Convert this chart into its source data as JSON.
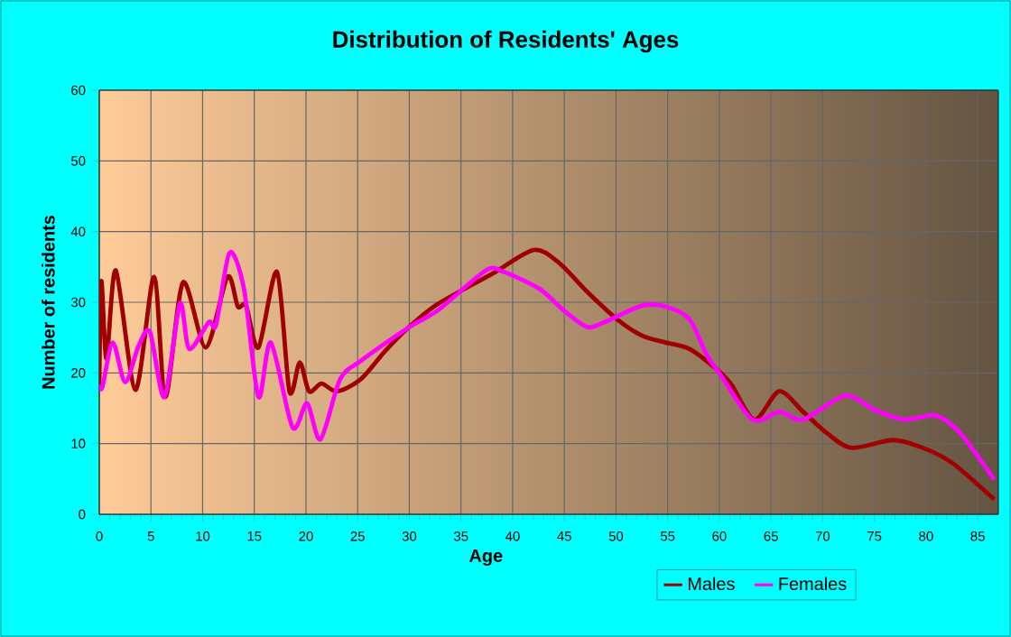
{
  "chart_data": {
    "type": "line",
    "title": "Distribution of Residents' Ages",
    "xlabel": "Age",
    "ylabel": "Number of residents",
    "xlim": [
      0,
      87
    ],
    "ylim": [
      0,
      60
    ],
    "xticks": [
      0,
      5,
      10,
      15,
      20,
      25,
      30,
      35,
      40,
      45,
      50,
      55,
      60,
      65,
      70,
      75,
      80,
      85
    ],
    "yticks": [
      0,
      10,
      20,
      30,
      40,
      50,
      60
    ],
    "grid": true,
    "legend": "bottom",
    "marker": "none",
    "line_style": "solid",
    "series": [
      {
        "name": "Males",
        "color": "#a00000",
        "x": [
          0,
          0.2,
          0.7,
          1.6,
          3.5,
          5.3,
          6.4,
          8.1,
          10.3,
          12.4,
          13.4,
          14.2,
          15.4,
          17.2,
          18.4,
          19.4,
          20.3,
          21.5,
          23,
          25.3,
          27.6,
          29.9,
          32.8,
          38,
          42,
          44.4,
          47.2,
          50.1,
          52.5,
          54.8,
          57.1,
          60,
          61.2,
          63.4,
          65.8,
          68.1,
          70.4,
          72.8,
          76.8,
          79.7,
          82.6,
          86.6
        ],
        "values": [
          18.3,
          33,
          22,
          34.5,
          17.6,
          33.6,
          16.6,
          32.8,
          23.6,
          33.6,
          29.4,
          29.5,
          23.6,
          34.3,
          17.4,
          21.5,
          17.4,
          18.5,
          17.4,
          19.1,
          23,
          26.4,
          29.8,
          34,
          37.4,
          35.7,
          31.5,
          27.6,
          25.3,
          24.3,
          23.4,
          20.2,
          18.3,
          13.4,
          17.4,
          14.5,
          11.5,
          9.4,
          10.5,
          9.4,
          7.2,
          2.1
        ]
      },
      {
        "name": "Females",
        "color": "#ff00ff",
        "x": [
          0,
          0.3,
          1.3,
          2.5,
          3.8,
          4.9,
          6.3,
          7.8,
          8.7,
          10.6,
          11.3,
          12.6,
          14,
          15.4,
          16.6,
          18.7,
          20.1,
          21.4,
          23.3,
          25.3,
          29.9,
          32.8,
          37.4,
          39.1,
          42.6,
          44.9,
          47.2,
          48.9,
          52.5,
          54.8,
          57.1,
          58.8,
          60,
          63.2,
          65.8,
          68.1,
          72.2,
          75.1,
          78,
          80.9,
          83.3,
          86.6
        ],
        "values": [
          18.3,
          18,
          24.3,
          18.7,
          23.8,
          25.8,
          16.6,
          29.8,
          23.4,
          27.2,
          26.8,
          37,
          31.9,
          16.6,
          24.3,
          12.3,
          15.7,
          10.6,
          19.1,
          21.7,
          26.4,
          28.9,
          34.5,
          34.3,
          31.9,
          28.9,
          26.5,
          27.2,
          29.5,
          29.4,
          27.6,
          22.5,
          20,
          13.4,
          14.5,
          13.4,
          16.8,
          14.7,
          13.4,
          14,
          11.5,
          4.9
        ]
      }
    ]
  }
}
